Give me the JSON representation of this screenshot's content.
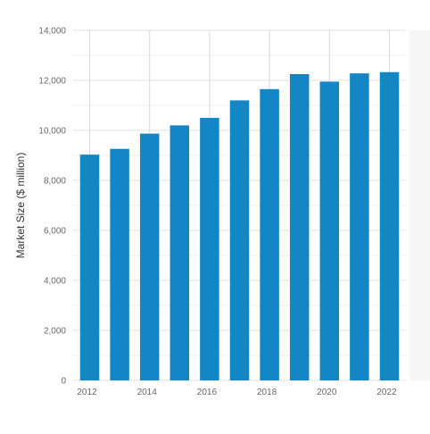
{
  "chart_data": {
    "type": "bar",
    "xlabel": "",
    "ylabel": "Market Size ($ million)",
    "ylim": [
      0,
      14000
    ],
    "yticks": [
      0,
      2000,
      4000,
      6000,
      8000,
      10000,
      12000,
      14000
    ],
    "ytick_labels": [
      "0",
      "2,000",
      "4,000",
      "6,000",
      "8,000",
      "10,000",
      "12,000",
      "14,000"
    ],
    "categories": [
      "2012",
      "2013",
      "2014",
      "2015",
      "2016",
      "2017",
      "2018",
      "2019",
      "2020",
      "2021",
      "2022"
    ],
    "xtick_labels": [
      "2012",
      "",
      "2014",
      "",
      "2016",
      "",
      "2018",
      "",
      "2020",
      "",
      "2022"
    ],
    "values": [
      9030,
      9260,
      9870,
      10200,
      10500,
      11200,
      11650,
      12250,
      11950,
      12280,
      12330
    ],
    "bar_color": "#1486c5",
    "grid": true,
    "legend": "none"
  }
}
